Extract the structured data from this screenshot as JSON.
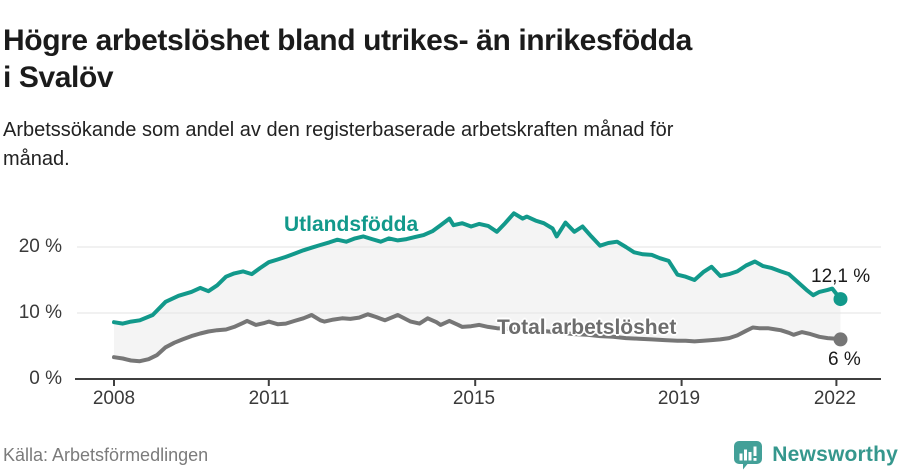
{
  "header": {
    "title": "Högre arbetslöshet bland utrikes- än inrikesfödda i Svalöv",
    "subtitle": "Arbetssökande som andel av den registerbaserade arbetskraften månad för månad."
  },
  "footer": {
    "source": "Källa: Arbetsförmedlingen",
    "brand": "Newsworthy",
    "brand_icon": "newsworthy-bar-chart-speech-bubble"
  },
  "colors": {
    "series1": "#12998b",
    "series2": "#767676",
    "band_fill": "#f4f4f4",
    "gridline": "#e3e3e3",
    "axis": "#3f3f3f",
    "brand_teal": "#35978d"
  },
  "chart_data": {
    "type": "line",
    "title": "Högre arbetslöshet bland utrikes- än inrikesfödda i Svalöv",
    "subtitle": "Arbetssökande som andel av den registerbaserade arbetskraften månad för månad.",
    "x_unit": "year (decimal; monthly observations)",
    "xlim": [
      2008.0,
      2022.25
    ],
    "ylim": [
      0,
      27
    ],
    "grid": "horizontal",
    "legend_position": "inline-labels",
    "yticks": [
      {
        "value": 0,
        "label": "0 %"
      },
      {
        "value": 10,
        "label": "10 %"
      },
      {
        "value": 20,
        "label": "20 %"
      }
    ],
    "xticks": [
      {
        "value": 2008,
        "label": "2008"
      },
      {
        "value": 2011,
        "label": "2011"
      },
      {
        "value": 2015,
        "label": "2015"
      },
      {
        "value": 2019,
        "label": "2019"
      },
      {
        "value": 2022,
        "label": "2022"
      }
    ],
    "band_between_series": true,
    "series": [
      {
        "name": "Utlandsfödda",
        "color": "#12998b",
        "end_label": "12,1 %",
        "end_value": 12.1,
        "points": [
          [
            2008.0,
            8.6
          ],
          [
            2008.17,
            8.4
          ],
          [
            2008.33,
            8.7
          ],
          [
            2008.5,
            8.9
          ],
          [
            2008.75,
            9.7
          ],
          [
            2009.0,
            11.7
          ],
          [
            2009.25,
            12.6
          ],
          [
            2009.5,
            13.2
          ],
          [
            2009.67,
            13.8
          ],
          [
            2009.83,
            13.3
          ],
          [
            2010.0,
            14.2
          ],
          [
            2010.17,
            15.5
          ],
          [
            2010.33,
            16.0
          ],
          [
            2010.5,
            16.3
          ],
          [
            2010.67,
            15.9
          ],
          [
            2010.83,
            16.8
          ],
          [
            2011.0,
            17.7
          ],
          [
            2011.17,
            18.1
          ],
          [
            2011.33,
            18.5
          ],
          [
            2011.5,
            19.0
          ],
          [
            2011.67,
            19.5
          ],
          [
            2011.83,
            19.9
          ],
          [
            2012.0,
            20.3
          ],
          [
            2012.17,
            20.7
          ],
          [
            2012.33,
            21.1
          ],
          [
            2012.5,
            20.8
          ],
          [
            2012.67,
            21.3
          ],
          [
            2012.83,
            21.6
          ],
          [
            2013.0,
            21.2
          ],
          [
            2013.17,
            20.8
          ],
          [
            2013.33,
            21.3
          ],
          [
            2013.5,
            21.0
          ],
          [
            2013.67,
            21.2
          ],
          [
            2013.83,
            21.5
          ],
          [
            2014.0,
            21.8
          ],
          [
            2014.17,
            22.4
          ],
          [
            2014.33,
            23.3
          ],
          [
            2014.5,
            24.3
          ],
          [
            2014.58,
            23.3
          ],
          [
            2014.75,
            23.6
          ],
          [
            2014.92,
            23.1
          ],
          [
            2015.08,
            23.5
          ],
          [
            2015.25,
            23.2
          ],
          [
            2015.42,
            22.3
          ],
          [
            2015.58,
            23.6
          ],
          [
            2015.75,
            25.1
          ],
          [
            2015.92,
            24.3
          ],
          [
            2016.0,
            24.6
          ],
          [
            2016.17,
            24.0
          ],
          [
            2016.33,
            23.6
          ],
          [
            2016.5,
            22.8
          ],
          [
            2016.58,
            21.6
          ],
          [
            2016.75,
            23.7
          ],
          [
            2016.92,
            22.3
          ],
          [
            2017.08,
            23.1
          ],
          [
            2017.25,
            21.6
          ],
          [
            2017.42,
            20.2
          ],
          [
            2017.58,
            20.6
          ],
          [
            2017.75,
            20.8
          ],
          [
            2017.92,
            20.0
          ],
          [
            2018.08,
            19.2
          ],
          [
            2018.25,
            18.9
          ],
          [
            2018.42,
            18.8
          ],
          [
            2018.58,
            18.3
          ],
          [
            2018.75,
            17.9
          ],
          [
            2018.92,
            15.8
          ],
          [
            2019.08,
            15.5
          ],
          [
            2019.25,
            15.0
          ],
          [
            2019.42,
            16.2
          ],
          [
            2019.58,
            17.0
          ],
          [
            2019.75,
            15.6
          ],
          [
            2019.92,
            15.9
          ],
          [
            2020.08,
            16.3
          ],
          [
            2020.25,
            17.2
          ],
          [
            2020.42,
            17.8
          ],
          [
            2020.58,
            17.1
          ],
          [
            2020.75,
            16.8
          ],
          [
            2020.92,
            16.3
          ],
          [
            2021.08,
            15.9
          ],
          [
            2021.25,
            14.7
          ],
          [
            2021.42,
            13.5
          ],
          [
            2021.55,
            12.7
          ],
          [
            2021.67,
            13.2
          ],
          [
            2021.83,
            13.5
          ],
          [
            2021.92,
            13.7
          ],
          [
            2022.0,
            12.9
          ],
          [
            2022.08,
            12.1
          ]
        ]
      },
      {
        "name": "Total arbetslöshet",
        "color": "#767676",
        "end_label": "6 %",
        "end_value": 6.0,
        "points": [
          [
            2008.0,
            3.3
          ],
          [
            2008.17,
            3.1
          ],
          [
            2008.33,
            2.8
          ],
          [
            2008.5,
            2.7
          ],
          [
            2008.67,
            3.0
          ],
          [
            2008.83,
            3.6
          ],
          [
            2009.0,
            4.8
          ],
          [
            2009.17,
            5.5
          ],
          [
            2009.33,
            6.0
          ],
          [
            2009.5,
            6.5
          ],
          [
            2009.67,
            6.9
          ],
          [
            2009.83,
            7.2
          ],
          [
            2010.0,
            7.4
          ],
          [
            2010.17,
            7.5
          ],
          [
            2010.33,
            7.9
          ],
          [
            2010.5,
            8.5
          ],
          [
            2010.58,
            8.8
          ],
          [
            2010.75,
            8.2
          ],
          [
            2010.92,
            8.5
          ],
          [
            2011.0,
            8.7
          ],
          [
            2011.17,
            8.3
          ],
          [
            2011.33,
            8.4
          ],
          [
            2011.5,
            8.8
          ],
          [
            2011.67,
            9.2
          ],
          [
            2011.83,
            9.7
          ],
          [
            2012.0,
            8.9
          ],
          [
            2012.08,
            8.7
          ],
          [
            2012.25,
            9.0
          ],
          [
            2012.42,
            9.2
          ],
          [
            2012.58,
            9.1
          ],
          [
            2012.75,
            9.3
          ],
          [
            2012.92,
            9.8
          ],
          [
            2013.08,
            9.4
          ],
          [
            2013.25,
            8.9
          ],
          [
            2013.5,
            9.7
          ],
          [
            2013.75,
            8.7
          ],
          [
            2013.92,
            8.4
          ],
          [
            2014.08,
            9.2
          ],
          [
            2014.25,
            8.6
          ],
          [
            2014.33,
            8.2
          ],
          [
            2014.5,
            8.8
          ],
          [
            2014.67,
            8.2
          ],
          [
            2014.75,
            7.9
          ],
          [
            2014.92,
            8.0
          ],
          [
            2015.08,
            8.2
          ],
          [
            2015.25,
            7.9
          ],
          [
            2015.42,
            7.7
          ],
          [
            2015.67,
            7.6
          ],
          [
            2015.92,
            7.5
          ],
          [
            2016.17,
            7.4
          ],
          [
            2016.42,
            7.2
          ],
          [
            2016.67,
            7.0
          ],
          [
            2016.92,
            6.8
          ],
          [
            2017.17,
            6.7
          ],
          [
            2017.42,
            6.5
          ],
          [
            2017.67,
            6.4
          ],
          [
            2017.92,
            6.2
          ],
          [
            2018.17,
            6.1
          ],
          [
            2018.42,
            6.0
          ],
          [
            2018.67,
            5.9
          ],
          [
            2018.92,
            5.8
          ],
          [
            2019.08,
            5.8
          ],
          [
            2019.25,
            5.7
          ],
          [
            2019.42,
            5.8
          ],
          [
            2019.58,
            5.9
          ],
          [
            2019.75,
            6.0
          ],
          [
            2019.92,
            6.2
          ],
          [
            2020.08,
            6.6
          ],
          [
            2020.25,
            7.3
          ],
          [
            2020.38,
            7.8
          ],
          [
            2020.5,
            7.7
          ],
          [
            2020.67,
            7.7
          ],
          [
            2020.83,
            7.5
          ],
          [
            2020.92,
            7.4
          ],
          [
            2021.08,
            7.0
          ],
          [
            2021.17,
            6.7
          ],
          [
            2021.33,
            7.1
          ],
          [
            2021.5,
            6.8
          ],
          [
            2021.67,
            6.4
          ],
          [
            2021.83,
            6.2
          ],
          [
            2022.0,
            6.1
          ],
          [
            2022.08,
            6.0
          ]
        ]
      }
    ]
  }
}
